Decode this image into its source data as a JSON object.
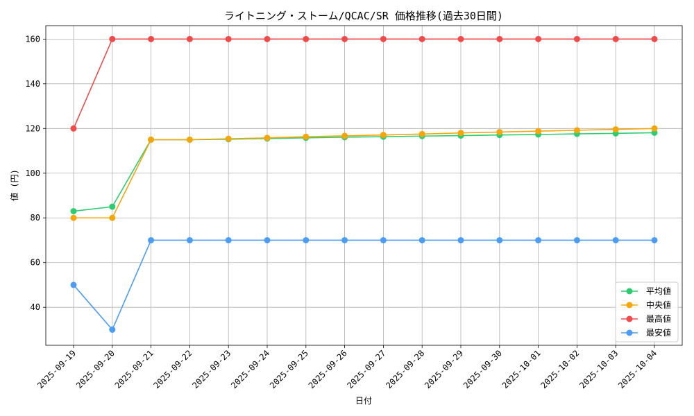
{
  "chart_data": {
    "type": "line",
    "title": "ライトニング・ストーム/QCAC/SR 価格推移(過去30日間)",
    "xlabel": "日付",
    "ylabel": "値 (円)",
    "ylim": [
      23,
      166
    ],
    "yticks": [
      40,
      60,
      80,
      100,
      120,
      140,
      160
    ],
    "grid": true,
    "legend_position": "lower-right",
    "categories": [
      "2025-09-19",
      "2025-09-20",
      "2025-09-21",
      "2025-09-22",
      "2025-09-23",
      "2025-09-24",
      "2025-09-25",
      "2025-09-26",
      "2025-09-27",
      "2025-09-28",
      "2025-09-29",
      "2025-09-30",
      "2025-10-01",
      "2025-10-02",
      "2025-10-03",
      "2025-10-04"
    ],
    "series": [
      {
        "name": "平均値",
        "color": "#2ecc71",
        "values": [
          83,
          85,
          115,
          115,
          115.2,
          115.5,
          115.8,
          116.1,
          116.3,
          116.6,
          116.8,
          117.1,
          117.3,
          117.6,
          117.8,
          118.1
        ]
      },
      {
        "name": "中央値",
        "color": "#f5a60a",
        "values": [
          80,
          80,
          115,
          115,
          115.4,
          115.8,
          116.3,
          116.7,
          117.1,
          117.5,
          118.0,
          118.4,
          118.8,
          119.2,
          119.6,
          120.0
        ]
      },
      {
        "name": "最高値",
        "color": "#ef4b4b",
        "values": [
          120,
          160,
          160,
          160,
          160,
          160,
          160,
          160,
          160,
          160,
          160,
          160,
          160,
          160,
          160,
          160
        ]
      },
      {
        "name": "最安値",
        "color": "#4b9cf5",
        "values": [
          50,
          30,
          70,
          70,
          70,
          70,
          70,
          70,
          70,
          70,
          70,
          70,
          70,
          70,
          70,
          70
        ]
      }
    ]
  }
}
